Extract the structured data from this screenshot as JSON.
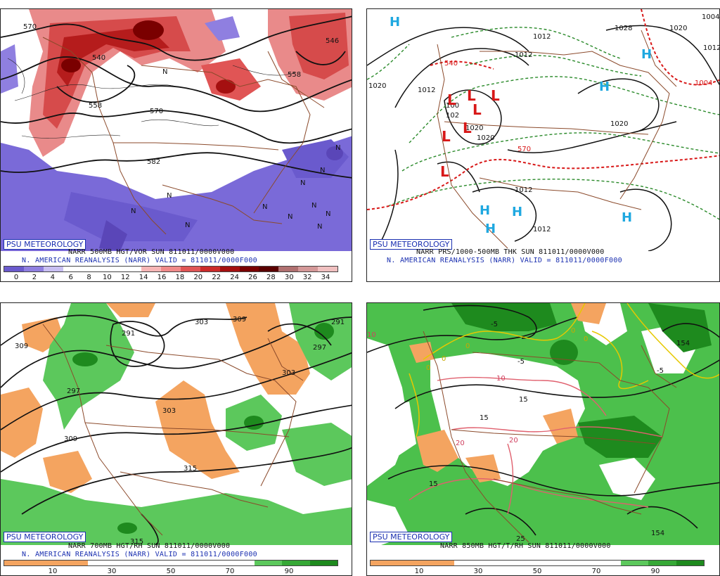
{
  "logo": "PSU METEOROLOGY",
  "colors": {
    "coast": "#8b4a2b",
    "contour": "#111111",
    "label_blue": "#1a2fb0",
    "high_cyan": "#1fa8e0",
    "low_red": "#d81818",
    "thickness_green": "#2a8a2a",
    "thickness_red": "#d81818"
  },
  "panels": [
    {
      "id": "vorticity",
      "title_line1": "NARR 500MB HGT/VOR SUN 811011/0000V000",
      "title_line2": "N. AMERICAN REANALYSIS (NARR) VALID = 811011/0000F000",
      "colorbar_colors": [
        "#6a5acd",
        "#8f7fe0",
        "#c8bff2",
        "#ffffff",
        "#ffffff",
        "#ffffff",
        "#ffffff",
        "#f7b6b6",
        "#f08a8a",
        "#e05555",
        "#cc2a2a",
        "#a51010",
        "#7a0000",
        "#5a0000",
        "#b07070",
        "#d49898",
        "#f0c0c0"
      ],
      "colorbar_ticks": [
        "0",
        "2",
        "4",
        "6",
        "8",
        "10",
        "12",
        "14",
        "16",
        "18",
        "20",
        "22",
        "24",
        "26",
        "28",
        "30",
        "32",
        "34"
      ],
      "contour_labels": [
        "570",
        "540",
        "558",
        "558",
        "570",
        "582",
        "546"
      ],
      "symbols": [
        "N",
        "N",
        "N",
        "N",
        "N",
        "N",
        "N",
        "N",
        "N",
        "N",
        "N",
        "N"
      ]
    },
    {
      "id": "pressure",
      "title_line1": "NARR PRS/1000-500MB THK SUN 811011/0000V000",
      "title_line2": "N. AMERICAN REANALYSIS (NARR) VALID = 811011/0000F000",
      "contour_labels": [
        "1020",
        "1012",
        "1012",
        "1028",
        "1020",
        "1012",
        "1020",
        "1004",
        "1012",
        "1012",
        "1012",
        "100",
        "102",
        "540",
        "570",
        "1004",
        "1020",
        "1020"
      ],
      "highs": [
        "H",
        "H",
        "H",
        "H",
        "H",
        "H",
        "H"
      ],
      "lows": [
        "L",
        "L",
        "L",
        "L",
        "L",
        "L",
        "L"
      ]
    },
    {
      "id": "humidity700",
      "title_line1": "NARR 700MB HGT/RH SUN 811011/0000V000",
      "title_line2": "N. AMERICAN REANALYSIS (NARR) VALID = 811011/0000F000",
      "colorbar_colors": [
        "#f4a460",
        "#f4a460",
        "#f4a460",
        "#ffffff",
        "#ffffff",
        "#ffffff",
        "#ffffff",
        "#ffffff",
        "#ffffff",
        "#5cc85c",
        "#36a836",
        "#1e8a1e"
      ],
      "colorbar_ticks": [
        "10",
        "30",
        "50",
        "70",
        "90"
      ],
      "contour_labels": [
        "309",
        "291",
        "303",
        "309",
        "297",
        "303",
        "297",
        "303",
        "309",
        "315",
        "291",
        "315"
      ]
    },
    {
      "id": "temp850",
      "title_line1": "NARR 850MB HGT/T/RH SUN 811011/0000V000",
      "title_line2": "",
      "colorbar_colors": [
        "#f4a460",
        "#f4a460",
        "#f4a460",
        "#ffffff",
        "#ffffff",
        "#ffffff",
        "#ffffff",
        "#ffffff",
        "#ffffff",
        "#5cc85c",
        "#36a836",
        "#1e8a1e"
      ],
      "colorbar_ticks": [
        "10",
        "30",
        "50",
        "70",
        "90"
      ],
      "contour_labels": [
        "-5",
        "-5",
        "-5",
        "0",
        "0",
        "0",
        "0",
        "0",
        "10",
        "15",
        "15",
        "20",
        "20",
        "15",
        "25",
        "154",
        "154",
        "10"
      ]
    }
  ]
}
